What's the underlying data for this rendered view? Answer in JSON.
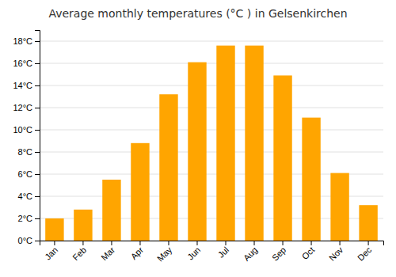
{
  "chart_data": {
    "type": "bar",
    "title": "Average monthly temperatures (°C ) in Gelsenkirchen",
    "categories": [
      "Jan",
      "Feb",
      "Mar",
      "Apr",
      "May",
      "Jun",
      "Jul",
      "Aug",
      "Sep",
      "Oct",
      "Nov",
      "Dec"
    ],
    "values": [
      2.0,
      2.8,
      5.5,
      8.8,
      13.2,
      16.1,
      17.6,
      17.6,
      14.9,
      11.1,
      6.1,
      3.2
    ],
    "color": "#FFA500",
    "ylim": [
      0,
      19
    ],
    "yticks": [
      {
        "value": 0,
        "label": "0°C"
      },
      {
        "value": 2,
        "label": "2°C"
      },
      {
        "value": 4,
        "label": "4°C"
      },
      {
        "value": 6,
        "label": "6°C"
      },
      {
        "value": 8,
        "label": "8°C"
      },
      {
        "value": 10,
        "label": "10°C"
      },
      {
        "value": 12,
        "label": "12°C"
      },
      {
        "value": 14,
        "label": "14°C"
      },
      {
        "value": 16,
        "label": "16°C"
      },
      {
        "value": 18,
        "label": "18°C"
      }
    ],
    "grid": true
  }
}
